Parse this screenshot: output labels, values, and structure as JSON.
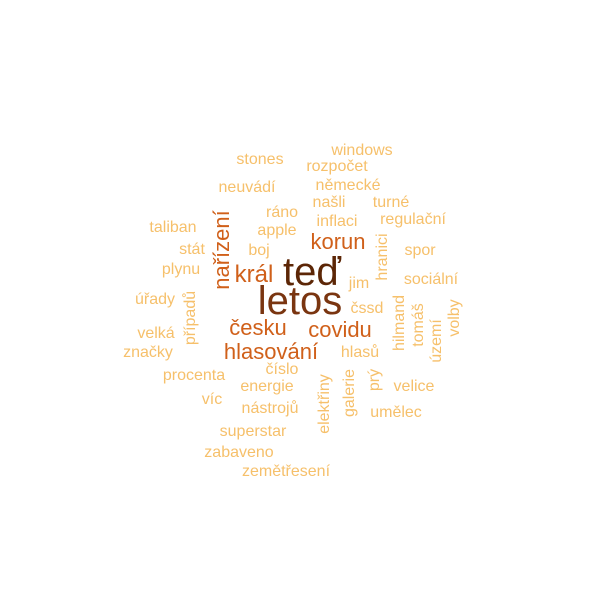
{
  "colors": {
    "background": "#ffffff",
    "tier1": "#5c2606",
    "tier2": "#7a3510",
    "tier3": "#d0601a",
    "tier4": "#f6c06b"
  },
  "words": [
    {
      "text": "teď",
      "tier": 1
    },
    {
      "text": "letos",
      "tier": 2
    },
    {
      "text": "král",
      "tier": 3
    },
    {
      "text": "korun",
      "tier": 3
    },
    {
      "text": "nařízení",
      "tier": 3
    },
    {
      "text": "česku",
      "tier": 3
    },
    {
      "text": "covidu",
      "tier": 3
    },
    {
      "text": "hlasování",
      "tier": 3
    },
    {
      "text": "windows",
      "tier": 4
    },
    {
      "text": "stones",
      "tier": 4
    },
    {
      "text": "rozpočet",
      "tier": 4
    },
    {
      "text": "neuvádí",
      "tier": 4
    },
    {
      "text": "německé",
      "tier": 4
    },
    {
      "text": "našli",
      "tier": 4
    },
    {
      "text": "turné",
      "tier": 4
    },
    {
      "text": "ráno",
      "tier": 4
    },
    {
      "text": "inflaci",
      "tier": 4
    },
    {
      "text": "regulační",
      "tier": 4
    },
    {
      "text": "taliban",
      "tier": 4
    },
    {
      "text": "apple",
      "tier": 4
    },
    {
      "text": "stát",
      "tier": 4
    },
    {
      "text": "boj",
      "tier": 4
    },
    {
      "text": "spor",
      "tier": 4
    },
    {
      "text": "hranici",
      "tier": 4
    },
    {
      "text": "plynu",
      "tier": 4
    },
    {
      "text": "sociální",
      "tier": 4
    },
    {
      "text": "jim",
      "tier": 4
    },
    {
      "text": "úřady",
      "tier": 4
    },
    {
      "text": "případů",
      "tier": 4
    },
    {
      "text": "čssd",
      "tier": 4
    },
    {
      "text": "hilmand",
      "tier": 4
    },
    {
      "text": "tomáš",
      "tier": 4
    },
    {
      "text": "volby",
      "tier": 4
    },
    {
      "text": "velká",
      "tier": 4
    },
    {
      "text": "území",
      "tier": 4
    },
    {
      "text": "značky",
      "tier": 4
    },
    {
      "text": "hlasů",
      "tier": 4
    },
    {
      "text": "číslo",
      "tier": 4
    },
    {
      "text": "procenta",
      "tier": 4
    },
    {
      "text": "energie",
      "tier": 4
    },
    {
      "text": "prý",
      "tier": 4
    },
    {
      "text": "velice",
      "tier": 4
    },
    {
      "text": "galerie",
      "tier": 4
    },
    {
      "text": "víc",
      "tier": 4
    },
    {
      "text": "nástrojů",
      "tier": 4
    },
    {
      "text": "elektřiny",
      "tier": 4
    },
    {
      "text": "umělec",
      "tier": 4
    },
    {
      "text": "superstar",
      "tier": 4
    },
    {
      "text": "zabaveno",
      "tier": 4
    },
    {
      "text": "zemětřesení",
      "tier": 4
    }
  ]
}
